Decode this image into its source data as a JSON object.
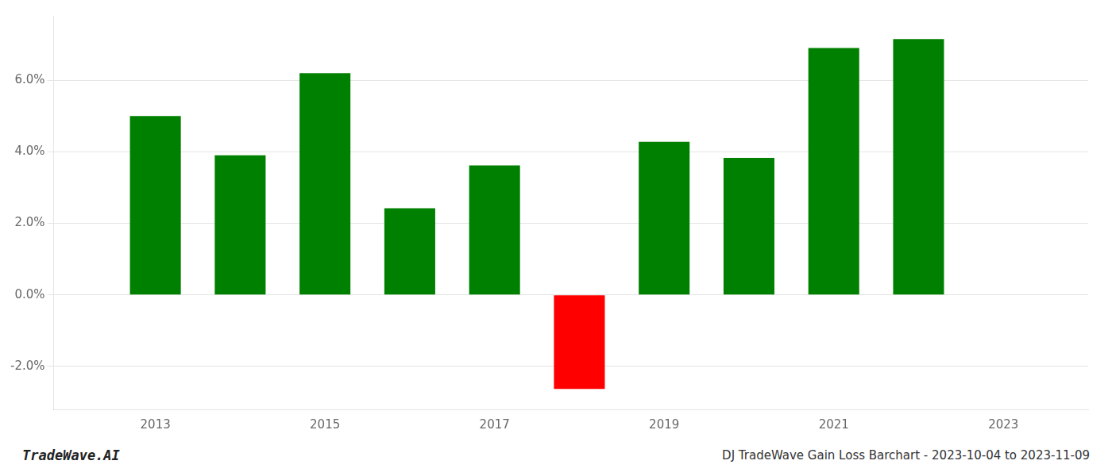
{
  "chart_data": {
    "type": "bar",
    "title": "DJ TradeWave Gain Loss Barchart - 2023-10-04 to 2023-11-09",
    "annotations": [
      "TradeWave.AI"
    ],
    "x": [
      2013,
      2014,
      2015,
      2016,
      2017,
      2018,
      2019,
      2020,
      2021,
      2022
    ],
    "values": [
      0.05,
      0.039,
      0.062,
      0.0242,
      0.0362,
      -0.0263,
      0.0428,
      0.0383,
      0.069,
      0.0715
    ],
    "colors": [
      "#008000",
      "#008000",
      "#008000",
      "#008000",
      "#008000",
      "#ff0000",
      "#008000",
      "#008000",
      "#008000",
      "#008000"
    ],
    "xlim": [
      2011.8,
      2024.0
    ],
    "xticks": [
      2013,
      2015,
      2017,
      2019,
      2021,
      2023
    ],
    "ylim": [
      -0.032,
      0.078
    ],
    "yticks": [
      {
        "value": -0.02,
        "label": "-2.0%"
      },
      {
        "value": 0.0,
        "label": "0.0%"
      },
      {
        "value": 0.02,
        "label": "2.0%"
      },
      {
        "value": 0.04,
        "label": "4.0%"
      },
      {
        "value": 0.06,
        "label": "6.0%"
      }
    ],
    "grid": true
  }
}
